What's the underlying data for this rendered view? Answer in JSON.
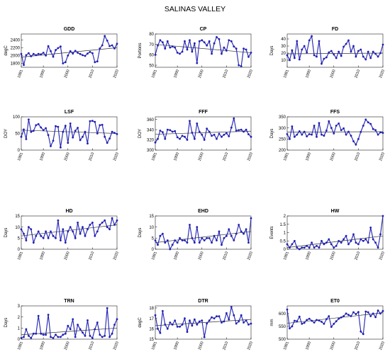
{
  "figure": {
    "title": "SALINAS VALLEY"
  },
  "chart_data": [
    {
      "type": "line",
      "title": "GDD",
      "ylabel": "degC",
      "ylim": [
        1700,
        2550
      ],
      "yticks": [
        1800,
        2000,
        2200,
        2400
      ],
      "xlim": [
        1981,
        2020
      ],
      "xticks": [
        1981,
        1990,
        2000,
        2010,
        2020
      ],
      "series": [
        {
          "x_start": 1981,
          "values": [
            2040,
            1760,
            2010,
            2060,
            1980,
            2040,
            2010,
            2040,
            2030,
            2070,
            2000,
            2240,
            2110,
            1970,
            2140,
            2190,
            2230,
            1800,
            1830,
            2000,
            2110,
            2050,
            2120,
            2070,
            2040,
            2010,
            1990,
            2050,
            2090,
            2060,
            1830,
            1850,
            2180,
            2260,
            2500,
            2380,
            2240,
            2260,
            2180,
            2300
          ]
        }
      ],
      "trend": [
        1960,
        2200
      ]
    },
    {
      "type": "line",
      "title": "CP",
      "ylabel": "Portions",
      "ylim": [
        48,
        80
      ],
      "yticks": [
        50,
        60,
        70,
        80
      ],
      "xlim": [
        1981,
        2020
      ],
      "xticks": [
        1981,
        1990,
        2000,
        2010,
        2020
      ],
      "series": [
        {
          "x_start": 1981,
          "values": [
            60,
            69,
            74,
            72,
            66,
            73,
            67,
            68,
            67,
            62,
            61,
            63,
            73,
            65,
            74,
            63,
            71,
            52,
            73,
            74,
            72,
            69,
            73,
            61,
            71,
            77,
            75,
            61,
            67,
            64,
            74,
            73,
            68,
            66,
            50,
            49,
            66,
            65,
            58,
            62
          ]
        }
      ],
      "trend": [
        70,
        62
      ]
    },
    {
      "type": "line",
      "title": "FD",
      "ylabel": "Days",
      "ylim": [
        0,
        47
      ],
      "yticks": [
        10,
        20,
        30,
        40
      ],
      "xlim": [
        1981,
        2020
      ],
      "xticks": [
        1981,
        1990,
        2000,
        2010,
        2020
      ],
      "series": [
        {
          "x_start": 1981,
          "values": [
            17,
            10,
            24,
            13,
            37,
            11,
            25,
            30,
            21,
            38,
            44,
            17,
            15,
            37,
            5,
            12,
            14,
            21,
            23,
            18,
            13,
            22,
            16,
            29,
            33,
            38,
            22,
            30,
            15,
            23,
            25,
            15,
            11,
            22,
            13,
            22,
            19,
            15,
            20,
            32
          ]
        }
      ],
      "trend": [
        19,
        20
      ]
    },
    {
      "type": "line",
      "title": "LSF",
      "ylabel": "DOY",
      "ylim": [
        0,
        100
      ],
      "yticks": [
        0,
        50,
        100
      ],
      "xlim": [
        1981,
        2020
      ],
      "xticks": [
        1981,
        1990,
        2000,
        2010,
        2020
      ],
      "series": [
        {
          "x_start": 1981,
          "values": [
            40,
            62,
            33,
            92,
            55,
            58,
            75,
            78,
            68,
            60,
            66,
            45,
            12,
            28,
            72,
            70,
            8,
            55,
            73,
            22,
            80,
            38,
            58,
            67,
            30,
            40,
            55,
            20,
            87,
            88,
            85,
            50,
            75,
            76,
            40,
            22,
            35,
            55,
            52,
            48
          ]
        }
      ],
      "trend": [
        60,
        50
      ]
    },
    {
      "type": "line",
      "title": "FFF",
      "ylabel": "DOY",
      "ylim": [
        300,
        365
      ],
      "yticks": [
        300,
        320,
        340,
        360
      ],
      "xlim": [
        1981,
        2020
      ],
      "xticks": [
        1981,
        1990,
        2000,
        2010,
        2020
      ],
      "series": [
        {
          "x_start": 1981,
          "values": [
            315,
            322,
            338,
            335,
            322,
            340,
            339,
            336,
            337,
            325,
            322,
            328,
            326,
            320,
            357,
            334,
            322,
            352,
            336,
            330,
            320,
            342,
            336,
            328,
            330,
            322,
            332,
            326,
            330,
            333,
            327,
            344,
            362,
            338,
            339,
            340,
            336,
            340,
            331,
            326
          ]
        }
      ],
      "trend": [
        331,
        337
      ]
    },
    {
      "type": "line",
      "title": "FFS",
      "ylabel": "Days",
      "ylim": [
        200,
        350
      ],
      "yticks": [
        200,
        250,
        300,
        350
      ],
      "xlim": [
        1981,
        2020
      ],
      "xticks": [
        1981,
        1990,
        2000,
        2010,
        2020
      ],
      "series": [
        {
          "x_start": 1981,
          "values": [
            272,
            250,
            307,
            260,
            270,
            285,
            270,
            283,
            262,
            272,
            270,
            310,
            260,
            322,
            270,
            265,
            288,
            330,
            300,
            275,
            310,
            320,
            290,
            298,
            270,
            283,
            265,
            240,
            225,
            250,
            282,
            310,
            338,
            325,
            318,
            295,
            290,
            270,
            280,
            278
          ]
        }
      ],
      "trend": [
        281,
        283
      ]
    },
    {
      "type": "line",
      "title": "HD",
      "ylabel": "Days",
      "ylim": [
        0,
        15
      ],
      "yticks": [
        0,
        5,
        10,
        15
      ],
      "xlim": [
        1981,
        2020
      ],
      "xticks": [
        1981,
        1990,
        2000,
        2010,
        2020
      ],
      "series": [
        {
          "x_start": 1981,
          "values": [
            9,
            7,
            4,
            10,
            9,
            3,
            6,
            8,
            6,
            5,
            8,
            5,
            8,
            6,
            5,
            13,
            4,
            9,
            3,
            8,
            10,
            8,
            5,
            12,
            7,
            10,
            6,
            9,
            11,
            12,
            6,
            8,
            11,
            12,
            13,
            10,
            9,
            14,
            11,
            13
          ]
        }
      ],
      "trend": [
        6,
        11
      ]
    },
    {
      "type": "line",
      "title": "EHD",
      "ylabel": "Days",
      "ylim": [
        0,
        15
      ],
      "yticks": [
        0,
        5,
        10,
        15
      ],
      "xlim": [
        1981,
        2020
      ],
      "xticks": [
        1981,
        1990,
        2000,
        2010,
        2020
      ],
      "series": [
        {
          "x_start": 1981,
          "values": [
            4,
            2,
            6,
            7,
            3,
            4,
            0,
            2,
            4,
            3,
            5,
            4,
            4,
            3,
            11,
            5,
            3,
            10,
            3,
            5,
            4,
            5,
            5,
            3,
            6,
            4,
            8,
            2,
            5,
            6,
            9,
            6,
            4,
            7,
            11,
            8,
            7,
            9,
            3,
            14
          ]
        }
      ],
      "trend": [
        3,
        8
      ]
    },
    {
      "type": "line",
      "title": "HW",
      "ylabel": "Events",
      "ylim": [
        0,
        2
      ],
      "yticks": [
        0,
        0.5,
        1,
        1.5,
        2
      ],
      "xlim": [
        1981,
        2020
      ],
      "xticks": [
        1981,
        1990,
        2000,
        2010,
        2020
      ],
      "series": [
        {
          "x_start": 1981,
          "values": [
            0.3,
            0.1,
            0.3,
            0.5,
            0.1,
            0,
            0.1,
            0.1,
            0.2,
            0.1,
            0.4,
            0.1,
            0.2,
            0.1,
            0.5,
            0.3,
            0.4,
            0.6,
            0.3,
            0.1,
            0.2,
            0.5,
            0.4,
            0.6,
            0.8,
            0.3,
            0.5,
            0.9,
            0.4,
            0.3,
            0.6,
            0.5,
            0.6,
            0.4,
            1.3,
            0.6,
            0.4,
            0.1,
            0.9,
            2.0
          ]
        }
      ],
      "trend": [
        0.1,
        0.8
      ]
    },
    {
      "type": "line",
      "title": "TRN",
      "ylabel": "Days",
      "ylim": [
        0,
        3
      ],
      "yticks": [
        0,
        1,
        2,
        3
      ],
      "xlim": [
        1981,
        2020
      ],
      "xticks": [
        1981,
        1990,
        2000,
        2010,
        2020
      ],
      "series": [
        {
          "x_start": 1981,
          "values": [
            0.1,
            0.2,
            0.9,
            0.3,
            0.1,
            0.5,
            0.5,
            2.1,
            0.5,
            0.4,
            0.4,
            2.2,
            0.2,
            0.1,
            0.4,
            0.2,
            0.2,
            0.4,
            0.5,
            1.2,
            0.9,
            1.8,
            0.2,
            1.3,
            0.9,
            0.6,
            0.3,
            1.7,
            0.3,
            0.1,
            0.9,
            1.5,
            0.4,
            0.2,
            0.3,
            2.8,
            0.2,
            0.5,
            1.3,
            1.8
          ]
        }
      ],
      "trend": [
        0.4,
        1.0
      ]
    },
    {
      "type": "line",
      "title": "DTR",
      "ylabel": "degC",
      "ylim": [
        15,
        18.2
      ],
      "yticks": [
        15,
        16,
        17,
        18
      ],
      "xlim": [
        1981,
        2020
      ],
      "xticks": [
        1981,
        1990,
        2000,
        2010,
        2020
      ],
      "series": [
        {
          "x_start": 1981,
          "values": [
            17.3,
            16,
            15.6,
            17.7,
            16.4,
            16,
            16.6,
            16.4,
            16.8,
            16.2,
            16.2,
            16.4,
            17,
            15.7,
            16.8,
            16.3,
            16.9,
            16.4,
            16.7,
            16.8,
            15.2,
            16.5,
            16.8,
            17.1,
            17,
            17.2,
            17.2,
            16.6,
            16.7,
            17.5,
            16.9,
            18.1,
            17.3,
            16.5,
            16.7,
            17.3,
            16.6,
            16.8,
            16.4,
            16.5
          ]
        }
      ],
      "trend": [
        16.3,
        16.9
      ]
    },
    {
      "type": "line",
      "title": "ET0",
      "ylabel": "mm",
      "ylim": [
        500,
        630
      ],
      "yticks": [
        500,
        550,
        600
      ],
      "xlim": [
        1981,
        2020
      ],
      "xticks": [
        1981,
        1990,
        2000,
        2010,
        2020
      ],
      "series": [
        {
          "x_start": 1981,
          "values": [
            616,
            542,
            550,
            572,
            570,
            588,
            560,
            564,
            575,
            580,
            572,
            565,
            575,
            573,
            568,
            560,
            578,
            590,
            548,
            560,
            570,
            580,
            585,
            590,
            600,
            595,
            590,
            605,
            598,
            606,
            530,
            520,
            608,
            605,
            590,
            600,
            586,
            612,
            600,
            610
          ]
        }
      ],
      "trend": [
        562,
        603
      ]
    }
  ]
}
